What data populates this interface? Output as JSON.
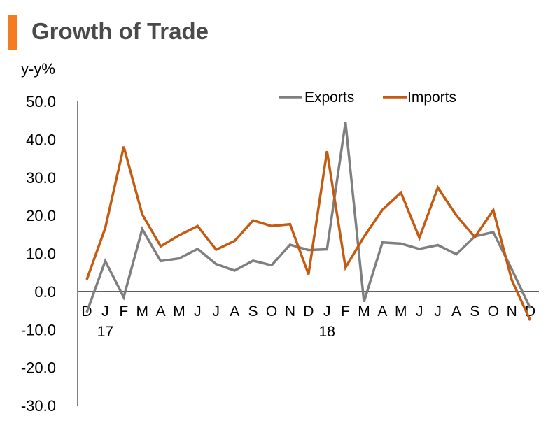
{
  "title": "Growth of Trade",
  "colors": {
    "accent": "#F47B20",
    "exports": "#7F7F7F",
    "imports": "#C55A11",
    "axis": "#000000",
    "title": "#4A4A4A"
  },
  "chart_data": {
    "type": "line",
    "title": "Growth of Trade",
    "ylabel": "y-y%",
    "xlabel": "",
    "ylim": [
      -30,
      50
    ],
    "yticks": [
      "50.0",
      "40.0",
      "30.0",
      "20.0",
      "10.0",
      "0.0",
      "-10.0",
      "-20.0",
      "-30.0"
    ],
    "categories": [
      "D",
      "J",
      "F",
      "M",
      "A",
      "M",
      "J",
      "J",
      "A",
      "S",
      "O",
      "N",
      "D",
      "J",
      "F",
      "M",
      "A",
      "M",
      "J",
      "J",
      "A",
      "S",
      "O",
      "N",
      "D"
    ],
    "year_labels": [
      {
        "index": 1,
        "label": "17"
      },
      {
        "index": 13,
        "label": "18"
      }
    ],
    "legend": {
      "position": "top-right",
      "entries": [
        "Exports",
        "Imports"
      ]
    },
    "series": [
      {
        "name": "Exports",
        "values": [
          -5.5,
          8.0,
          -1.5,
          16.4,
          8.0,
          8.7,
          11.2,
          7.2,
          5.5,
          8.1,
          6.9,
          12.3,
          10.9,
          11.1,
          44.5,
          -2.7,
          12.9,
          12.6,
          11.2,
          12.2,
          9.8,
          14.5,
          15.6,
          5.8,
          -4.4
        ]
      },
      {
        "name": "Imports",
        "values": [
          3.1,
          16.7,
          38.1,
          20.3,
          11.9,
          14.8,
          17.2,
          11.0,
          13.3,
          18.7,
          17.2,
          17.7,
          4.5,
          36.9,
          6.3,
          14.4,
          21.5,
          26.0,
          14.1,
          27.3,
          20.0,
          14.3,
          21.4,
          3.0,
          -7.6
        ]
      }
    ]
  }
}
